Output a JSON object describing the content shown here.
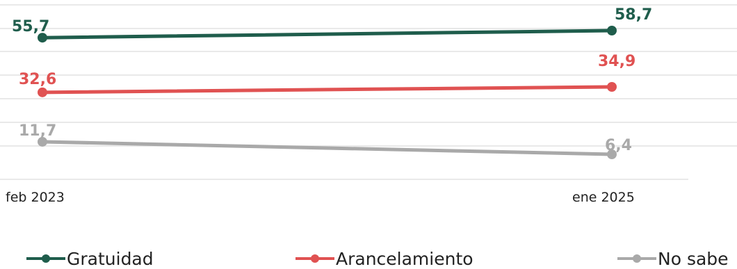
{
  "chart_data": {
    "type": "line",
    "x": [
      "feb 2023",
      "ene 2025"
    ],
    "series": [
      {
        "name": "Gratuidad",
        "values": [
          55.7,
          58.7
        ],
        "labels": [
          "55,7",
          "58,7"
        ],
        "color": "#1f5d4c"
      },
      {
        "name": "Arancelamiento",
        "values": [
          32.6,
          34.9
        ],
        "labels": [
          "32,6",
          "34,9"
        ],
        "color": "#e05252"
      },
      {
        "name": "No sabe",
        "values": [
          11.7,
          6.4
        ],
        "labels": [
          "11,7",
          "6,4"
        ],
        "color": "#a9a9a9"
      }
    ],
    "ylim": [
      0,
      70
    ],
    "grid": true,
    "legend_position": "bottom"
  }
}
